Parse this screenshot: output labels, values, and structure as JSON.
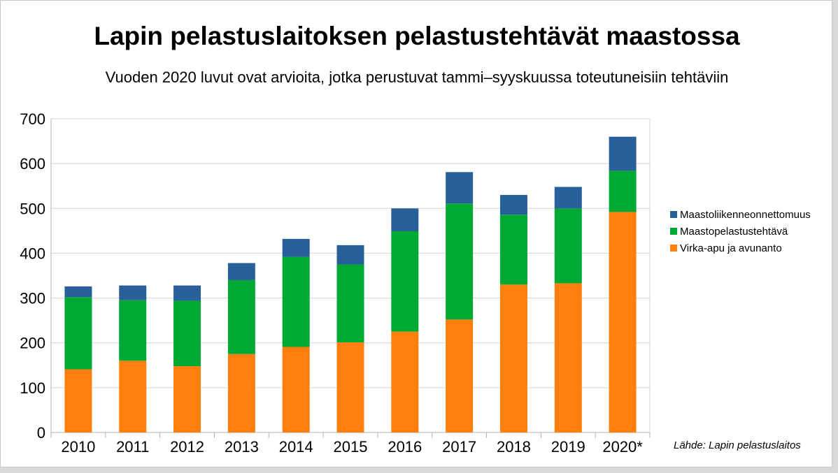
{
  "title": "Lapin pelastuslaitoksen pelastustehtävät maastossa",
  "subtitle": "Vuoden 2020 luvut ovat arvioita, jotka perustuvat tammi–syyskuussa toteutuneisiin tehtäviin",
  "source": "Lähde: Lapin pelastuslaitos",
  "chart_data": {
    "type": "bar",
    "stacked": true,
    "categories": [
      "2010",
      "2011",
      "2012",
      "2013",
      "2014",
      "2015",
      "2016",
      "2017",
      "2018",
      "2019",
      "2020*"
    ],
    "series": [
      {
        "name": "Virka-apu ja avunanto",
        "color": "#ff7f0e",
        "values": [
          141,
          160,
          148,
          175,
          191,
          201,
          225,
          252,
          330,
          333,
          492
        ]
      },
      {
        "name": "Maastopelastustehtävä",
        "color": "#00a933",
        "values": [
          161,
          135,
          146,
          165,
          201,
          174,
          224,
          259,
          156,
          167,
          92
        ]
      },
      {
        "name": "Maastoliikenneonnettomuus",
        "color": "#2a6099",
        "values": [
          24,
          33,
          34,
          38,
          40,
          43,
          51,
          70,
          44,
          48,
          76
        ]
      }
    ],
    "ylim": [
      0,
      700
    ],
    "yticks": [
      0,
      100,
      200,
      300,
      400,
      500,
      600,
      700
    ],
    "grid": true,
    "legend": "right",
    "legend_order": [
      "Maastoliikenneonnettomuus",
      "Maastopelastustehtävä",
      "Virka-apu ja avunanto"
    ]
  }
}
